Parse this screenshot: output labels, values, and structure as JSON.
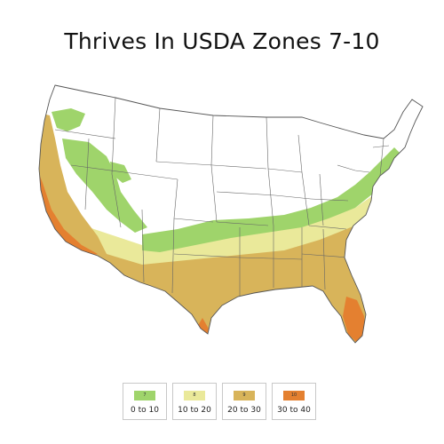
{
  "title": "Thrives In USDA Zones 7-10",
  "colors": {
    "zone7": "#9fd46b",
    "zone8": "#eae99a",
    "zone9": "#d8b45a",
    "zone10": "#e48030",
    "coast": "#c8743d",
    "border": "#555555",
    "background": "#ffffff"
  },
  "legend": [
    {
      "zone": "7",
      "range": "0 to 10",
      "color": "#9fd46b"
    },
    {
      "zone": "8",
      "range": "10 to 20",
      "color": "#eae99a"
    },
    {
      "zone": "9",
      "range": "20 to 30",
      "color": "#d8b45a"
    },
    {
      "zone": "10",
      "range": "30 to 40",
      "color": "#e48030"
    }
  ]
}
